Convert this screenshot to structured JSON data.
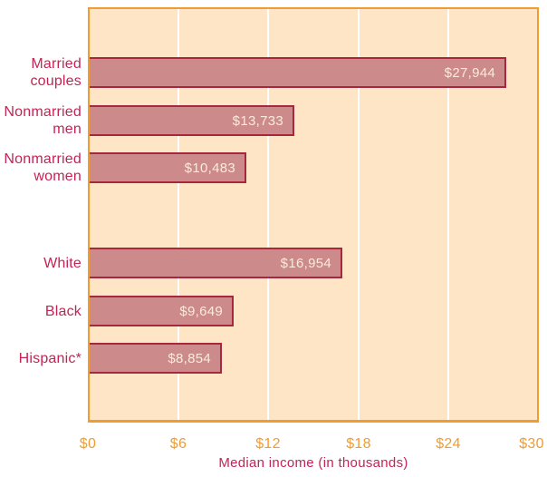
{
  "chart_data": {
    "type": "bar",
    "orientation": "horizontal",
    "title": "",
    "xlabel": "Median income (in thousands)",
    "ylabel": "",
    "x_range_dollars": [
      0,
      30000
    ],
    "x_ticks": [
      "$0",
      "$6",
      "$12",
      "$18",
      "$24",
      "$30"
    ],
    "gridlines": "vertical, at each $6 interval, white",
    "legend": "none",
    "groups": [
      {
        "name": "marital-status",
        "items": [
          {
            "label_lines": [
              "Married",
              "couples"
            ],
            "label": "Married couples",
            "value": 27944,
            "value_label": "$27,944"
          },
          {
            "label_lines": [
              "Nonmarried",
              "men"
            ],
            "label": "Nonmarried men",
            "value": 13733,
            "value_label": "$13,733"
          },
          {
            "label_lines": [
              "Nonmarried",
              "women"
            ],
            "label": "Nonmarried women",
            "value": 10483,
            "value_label": "$10,483"
          }
        ]
      },
      {
        "name": "race-ethnicity",
        "items": [
          {
            "label_lines": [
              "White"
            ],
            "label": "White",
            "value": 16954,
            "value_label": "$16,954"
          },
          {
            "label_lines": [
              "Black"
            ],
            "label": "Black",
            "value": 9649,
            "value_label": "$9,649"
          },
          {
            "label_lines": [
              "Hispanic*"
            ],
            "label": "Hispanic*",
            "value": 8854,
            "value_label": "$8,854"
          }
        ]
      }
    ],
    "colors": {
      "plot_background": "#fde5c6",
      "frame_and_ticks_orange": "#f09c33",
      "bar_fill": "#cd8a8a",
      "bar_border": "#a5283e",
      "category_label_crimson": "#c32455",
      "value_label_cream": "#f8ecd8",
      "gridline": "#ffffff",
      "page_background": "#ffffff"
    }
  }
}
